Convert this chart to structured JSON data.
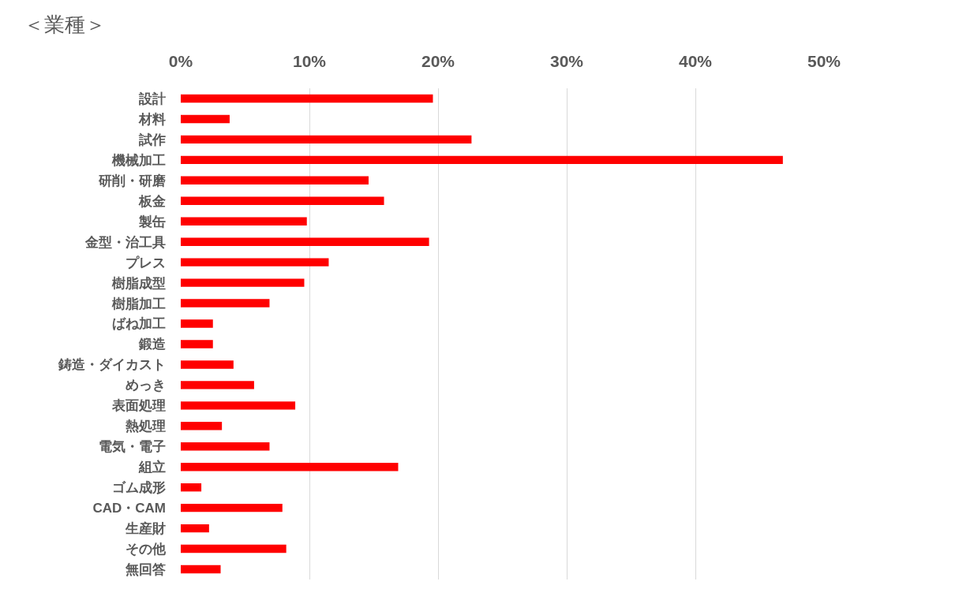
{
  "chart_data": {
    "type": "bar",
    "orientation": "horizontal",
    "title": "＜業種＞",
    "categories": [
      "設計",
      "材料",
      "試作",
      "機械加工",
      "研削・研磨",
      "板金",
      "製缶",
      "金型・治工具",
      "プレス",
      "樹脂成型",
      "樹脂加工",
      "ばね加工",
      "鍛造",
      "鋳造・ダイカスト",
      "めっき",
      "表面処理",
      "熱処理",
      "電気・電子",
      "組立",
      "ゴム成形",
      "CAD・CAM",
      "生産財",
      "その他",
      "無回答"
    ],
    "values": [
      19.6,
      3.8,
      22.6,
      46.8,
      14.6,
      15.8,
      9.8,
      19.3,
      11.5,
      9.6,
      6.9,
      2.5,
      2.5,
      4.1,
      5.7,
      8.9,
      3.2,
      6.9,
      16.9,
      1.6,
      7.9,
      2.2,
      8.2,
      3.1
    ],
    "color": "#ff0000",
    "xlim": [
      0,
      50
    ],
    "xticks": [
      {
        "value": 0,
        "label": "0%"
      },
      {
        "value": 10,
        "label": "10%"
      },
      {
        "value": 20,
        "label": "20%"
      },
      {
        "value": 30,
        "label": "30%"
      },
      {
        "value": 40,
        "label": "40%"
      },
      {
        "value": 50,
        "label": "50%"
      }
    ],
    "grid": "x"
  }
}
